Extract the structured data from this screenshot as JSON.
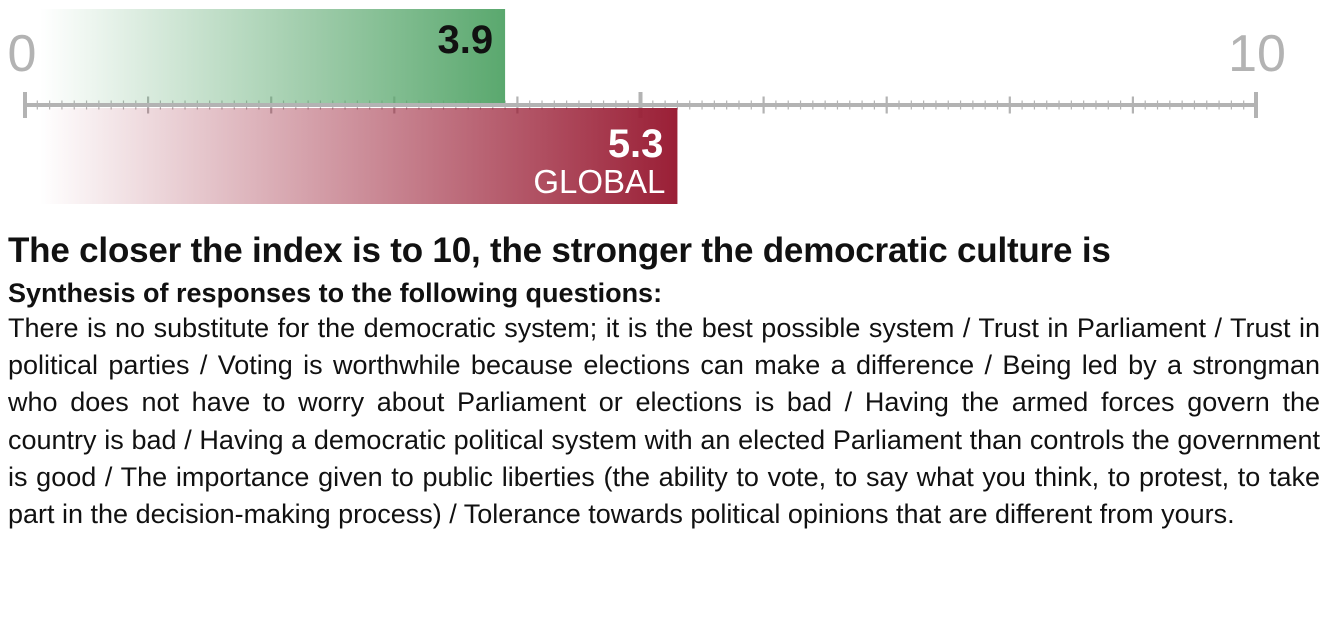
{
  "chart_data": {
    "type": "bar",
    "orientation": "horizontal",
    "xlim": [
      0,
      10
    ],
    "scale_labels": [
      "0",
      "10"
    ],
    "series": [
      {
        "value": 3.9,
        "value_label": "3.9",
        "sublabel": "",
        "color": "#5aa86e"
      },
      {
        "value": 5.3,
        "value_label": "5.3",
        "sublabel": "GLOBAL",
        "color": "#9a1f36"
      }
    ],
    "axis_color": "#b3b3b3"
  },
  "text": {
    "headline": "The closer the index is to 10, the stronger the democratic culture is",
    "subhead": "Synthesis of responses to the following questions:",
    "body": "There is no substitute for the democratic system; it is the best possible system / Trust in Parliament / Trust in political parties / Voting is worthwhile because elections can make a difference / Being led by a strongman who does not have to worry about Parliament or elections is bad / Having the armed forces govern the country is bad / Having a democratic political system with an elected Parliament than controls the government is good / The importance given to public liberties (the ability to vote, to say what you think, to protest, to take part in the decision-making process) / Tolerance towards political opinions that are different from yours."
  }
}
